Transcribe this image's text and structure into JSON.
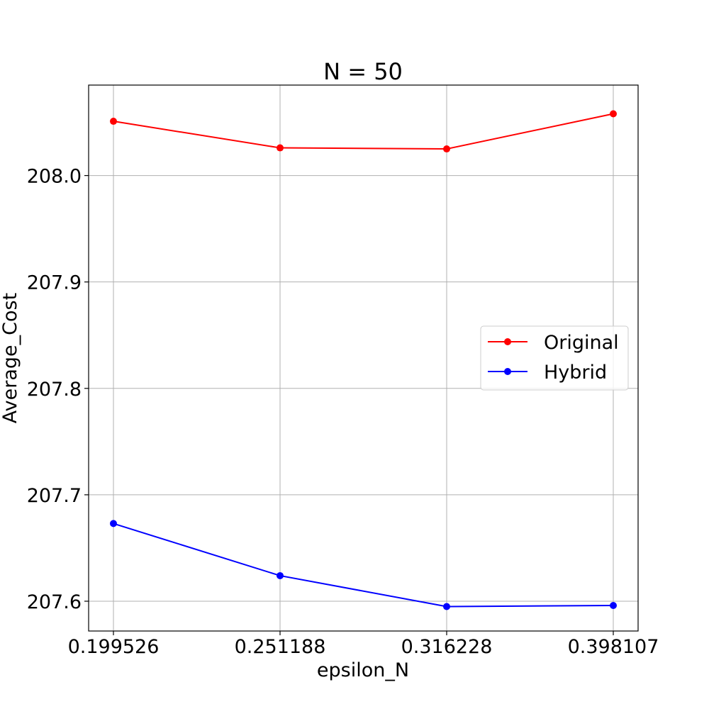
{
  "chart_data": {
    "type": "line",
    "title": "N = 50",
    "xlabel": "epsilon_N",
    "ylabel": "Average_Cost",
    "categories": [
      "0.199526",
      "0.251188",
      "0.316228",
      "0.398107"
    ],
    "yticks": [
      "207.6",
      "207.7",
      "207.8",
      "207.9",
      "208.0"
    ],
    "ylim": [
      207.572,
      208.085
    ],
    "grid": true,
    "legend_position": "center-right",
    "series": [
      {
        "name": "Original",
        "color": "#ff0000",
        "values": [
          208.051,
          208.026,
          208.025,
          208.058
        ]
      },
      {
        "name": "Hybrid",
        "color": "#0000ff",
        "values": [
          207.673,
          207.624,
          207.595,
          207.596
        ]
      }
    ]
  }
}
